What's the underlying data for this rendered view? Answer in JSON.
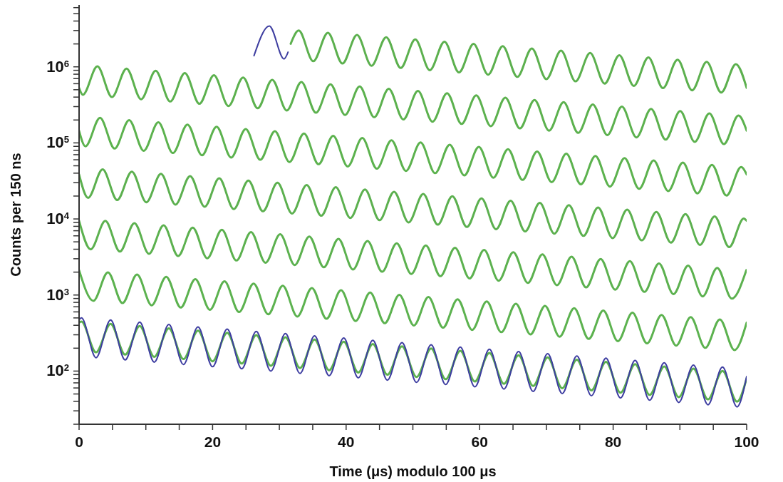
{
  "chart_data": {
    "type": "line",
    "xlabel": "Time (μs) modulo 100 μs",
    "ylabel": "Counts per 150 ns",
    "log": "y",
    "xlim": [
      0,
      100
    ],
    "ylim": [
      20,
      6500000
    ],
    "xticks": [
      0,
      {
        "value": 5,
        "label": null
      },
      {
        "value": 10,
        "label": null
      },
      {
        "value": 15,
        "label": null
      },
      20,
      {
        "value": 25,
        "label": null
      },
      {
        "value": 30,
        "label": null
      },
      {
        "value": 35,
        "label": null
      },
      40,
      {
        "value": 45,
        "label": null
      },
      {
        "value": 50,
        "label": null
      },
      {
        "value": 55,
        "label": null
      },
      60,
      {
        "value": 65,
        "label": null
      },
      {
        "value": 70,
        "label": null
      },
      {
        "value": 75,
        "label": null
      },
      80,
      {
        "value": 85,
        "label": null
      },
      {
        "value": 90,
        "label": null
      },
      {
        "value": 95,
        "label": null
      },
      100
    ],
    "yticks": [
      {
        "value": 20,
        "label": null
      },
      {
        "value": 30,
        "label": null
      },
      {
        "value": 40,
        "label": null
      },
      {
        "value": 50,
        "label": null
      },
      {
        "value": 60,
        "label": null
      },
      {
        "value": 70,
        "label": null
      },
      {
        "value": 80,
        "label": null
      },
      {
        "value": 90,
        "label": null
      },
      {
        "value": 100,
        "label": "10$^{2}$"
      },
      {
        "value": 200,
        "label": null
      },
      {
        "value": 300,
        "label": null
      },
      {
        "value": 400,
        "label": null
      },
      {
        "value": 500,
        "label": null
      },
      {
        "value": 600,
        "label": null
      },
      {
        "value": 700,
        "label": null
      },
      {
        "value": 800,
        "label": null
      },
      {
        "value": 900,
        "label": null
      },
      {
        "value": 1000,
        "label": "10$^{3}$"
      },
      {
        "value": 2000,
        "label": null
      },
      {
        "value": 3000,
        "label": null
      },
      {
        "value": 4000,
        "label": null
      },
      {
        "value": 5000,
        "label": null
      },
      {
        "value": 6000,
        "label": null
      },
      {
        "value": 7000,
        "label": null
      },
      {
        "value": 8000,
        "label": null
      },
      {
        "value": 9000,
        "label": null
      },
      {
        "value": 10000,
        "label": "10$^{4}$"
      },
      {
        "value": 20000,
        "label": null
      },
      {
        "value": 30000,
        "label": null
      },
      {
        "value": 40000,
        "label": null
      },
      {
        "value": 50000,
        "label": null
      },
      {
        "value": 60000,
        "label": null
      },
      {
        "value": 70000,
        "label": null
      },
      {
        "value": 80000,
        "label": null
      },
      {
        "value": 90000,
        "label": null
      },
      {
        "value": 100000,
        "label": "10$^{5}$"
      },
      {
        "value": 200000,
        "label": null
      },
      {
        "value": 300000,
        "label": null
      },
      {
        "value": 400000,
        "label": null
      },
      {
        "value": 500000,
        "label": null
      },
      {
        "value": 600000,
        "label": null
      },
      {
        "value": 700000,
        "label": null
      },
      {
        "value": 800000,
        "label": null
      },
      {
        "value": 900000,
        "label": null
      },
      {
        "value": 1000000,
        "label": "10$^{6}$"
      },
      {
        "value": 2000000,
        "label": null
      },
      {
        "value": 3000000,
        "label": null
      },
      {
        "value": 4000000,
        "label": null
      },
      {
        "value": 5000000,
        "label": null
      },
      {
        "value": 6000000,
        "label": null
      }
    ],
    "series": [
      {
        "color": "#3e3ea0",
        "x": [
          26.2,
          28.5,
          30.7,
          31.3
        ],
        "values": [
          1400000,
          3440000,
          1270000,
          1560000
        ]
      },
      {
        "color": "#5cb04e",
        "x": [
          31.7,
          32.9,
          35.08,
          37.27,
          39.45,
          41.63,
          43.81,
          46.0,
          48.18,
          50.36,
          52.54,
          54.73,
          56.91,
          59.09,
          61.27,
          63.46,
          65.64,
          67.82,
          70.0,
          72.19,
          74.37,
          76.55,
          78.73,
          80.92,
          83.1,
          85.28,
          87.46,
          89.65,
          91.83,
          94.01,
          96.19,
          98.38,
          100
        ],
        "values": [
          2010000,
          3000000,
          1185000,
          2800000,
          1107000,
          2620000,
          1035000,
          2450000,
          967000,
          2290000,
          903000,
          2140000,
          844000,
          2000000,
          789000,
          1870000,
          737000,
          1745000,
          689000,
          1630000,
          644000,
          1520000,
          602000,
          1420000,
          562000,
          1330000,
          525000,
          1240000,
          491000,
          1160000,
          459000,
          1086000,
          528000
        ]
      },
      {
        "color": "#5cb14e",
        "x": [
          0,
          0.56,
          2.74,
          4.92,
          7.11,
          9.29,
          11.47,
          13.65,
          15.84,
          18.02,
          20.2,
          22.38,
          24.57,
          26.75,
          28.93,
          31.11,
          33.3,
          35.48,
          37.66,
          39.84,
          42.03,
          44.21,
          46.39,
          48.57,
          50.76,
          52.94,
          55.12,
          57.3,
          59.49,
          61.67,
          63.85,
          66.03,
          68.22,
          70.4,
          72.58,
          74.76,
          76.95,
          79.13,
          81.31,
          83.49,
          85.68,
          87.86,
          90.04,
          92.22,
          94.41,
          96.59,
          98.77,
          100
        ],
        "values": [
          528000,
          428700,
          1015000,
          400700,
          948400,
          374400,
          886200,
          349900,
          828100,
          326900,
          773700,
          305400,
          723000,
          285400,
          675800,
          266800,
          631500,
          249300,
          590000,
          232900,
          551400,
          217700,
          515200,
          203400,
          481500,
          190100,
          449900,
          177600,
          420400,
          166000,
          392900,
          155100,
          367100,
          144900,
          343100,
          135400,
          320600,
          126600,
          299500,
          118200,
          279900,
          110500,
          261600,
          103300,
          244500,
          96500,
          228500,
          144600
        ]
      },
      {
        "color": "#5cb24e",
        "x": [
          0,
          0.95,
          3.14,
          5.32,
          7.5,
          9.68,
          11.87,
          14.05,
          16.23,
          18.41,
          20.6,
          22.78,
          24.96,
          27.14,
          29.33,
          31.51,
          33.69,
          35.87,
          38.06,
          40.24,
          42.42,
          44.6,
          46.79,
          48.97,
          51.15,
          53.33,
          55.52,
          57.7,
          59.88,
          62.06,
          64.25,
          66.43,
          68.61,
          70.79,
          72.98,
          75.16,
          77.34,
          79.52,
          81.71,
          83.89,
          86.07,
          88.25,
          90.44,
          92.62,
          94.8,
          96.98,
          99.17,
          100
        ],
        "values": [
          144600,
          90210,
          213500,
          84290,
          199500,
          78760,
          186400,
          73590,
          174200,
          68770,
          162800,
          64270,
          152000,
          60010,
          142100,
          56100,
          132800,
          52430,
          124100,
          48990,
          116000,
          45790,
          108400,
          42790,
          101300,
          39990,
          94630,
          37360,
          88430,
          34910,
          82650,
          32630,
          77160,
          30460,
          72140,
          28480,
          67420,
          26620,
          63000,
          24870,
          58890,
          23250,
          55030,
          21720,
          51430,
          20300,
          48040,
          38500
        ]
      },
      {
        "color": "#5cb04f",
        "x": [
          0,
          1.35,
          3.53,
          5.71,
          7.9,
          10.08,
          12.26,
          14.44,
          16.63,
          18.81,
          20.99,
          23.17,
          25.36,
          27.54,
          29.72,
          31.9,
          34.09,
          36.27,
          38.45,
          40.63,
          42.82,
          45.0,
          47.18,
          49.36,
          51.55,
          53.73,
          55.91,
          58.09,
          60.28,
          62.46,
          64.64,
          66.82,
          69.01,
          71.19,
          73.37,
          75.55,
          77.74,
          79.92,
          82.1,
          84.28,
          86.47,
          88.65,
          90.83,
          93.01,
          95.2,
          97.38,
          99.56,
          100
        ],
        "values": [
          38500,
          18970,
          44890,
          17720,
          41960,
          16570,
          39170,
          15460,
          36620,
          14460,
          34230,
          13510,
          31980,
          12620,
          29900,
          11800,
          27940,
          11030,
          26110,
          10310,
          24390,
          9629,
          22790,
          8997,
          21300,
          8409,
          19890,
          7852,
          18590,
          7339,
          17380,
          6861,
          16240,
          6411,
          15180,
          5993,
          14180,
          5598,
          13260,
          5235,
          12380,
          4887,
          11570,
          4568,
          10810,
          4268,
          10100,
          9470
        ]
      },
      {
        "color": "#5cb14f",
        "x": [
          0,
          1.74,
          3.93,
          6.11,
          8.29,
          10.47,
          12.66,
          14.84,
          17.02,
          19.2,
          21.39,
          23.57,
          25.75,
          27.93,
          30.12,
          32.3,
          34.48,
          36.66,
          38.85,
          41.03,
          43.21,
          45.39,
          47.58,
          49.76,
          51.94,
          54.12,
          56.31,
          58.49,
          60.67,
          62.85,
          65.04,
          67.22,
          69.4,
          71.58,
          73.77,
          75.95,
          78.13,
          80.31,
          82.5,
          84.68,
          86.86,
          89.04,
          91.23,
          93.41,
          95.59,
          97.77,
          99.96
        ],
        "values": [
          9470,
          3987,
          9437,
          3726,
          8823,
          3483,
          8244,
          3255,
          7706,
          3042,
          7199,
          2842,
          6732,
          2658,
          6285,
          2481,
          5874,
          2319,
          5488,
          2167,
          5127,
          2024,
          4791,
          1891,
          4479,
          1768,
          4185,
          1652,
          3912,
          1544,
          3655,
          1443,
          3418,
          1349,
          3191,
          1260,
          2982,
          1177,
          2786,
          1100,
          2603,
          1028,
          2432,
          960.1,
          2274,
          897.7,
          2125
        ]
      },
      {
        "color": "#5cb24f",
        "x": [
          0,
          2.14,
          4.32,
          6.5,
          8.68,
          10.87,
          13.05,
          15.23,
          17.41,
          19.6,
          21.78,
          23.96,
          26.14,
          28.33,
          30.51,
          32.69,
          34.87,
          37.06,
          39.24,
          41.42,
          43.6,
          45.79,
          47.97,
          50.15,
          52.33,
          54.52,
          56.7,
          58.88,
          61.06,
          63.25,
          65.43,
          67.61,
          69.79,
          71.98,
          74.16,
          76.34,
          78.52,
          80.71,
          82.89,
          85.07,
          87.25,
          89.44,
          91.62,
          93.8,
          95.98,
          98.17,
          100
        ],
        "values": [
          2120,
          838.9,
          1986,
          784.0,
          1856,
          732.7,
          1735,
          684.9,
          1620,
          639.5,
          1514,
          597.7,
          1414,
          558.2,
          1321,
          521.5,
          1235,
          487.6,
          1154,
          455.6,
          1079,
          426.0,
          1008,
          397.9,
          942.2,
          372.0,
          880.8,
          347.7,
          822.4,
          324.7,
          768.6,
          303.4,
          717.8,
          283.4,
          670.6,
          264.7,
          627.0,
          247.5,
          585.8,
          231.3,
          547.8,
          216.3,
          511.7,
          202.0,
          478.3,
          188.8,
          433
        ]
      },
      {
        "color": "#5cb050",
        "x": [
          0,
          0.35,
          2.53,
          4.72,
          6.9,
          9.08,
          11.26,
          13.45,
          15.63,
          17.81,
          19.99,
          22.18,
          24.36,
          26.54,
          28.72,
          30.91,
          33.09,
          35.27,
          37.45,
          39.64,
          41.82,
          44.0,
          46.18,
          48.37,
          50.55,
          52.73,
          54.91,
          57.1,
          59.28,
          61.46,
          63.64,
          65.83,
          68.01,
          70.19,
          72.37,
          74.56,
          76.74,
          78.92,
          81.1,
          83.29,
          85.47,
          87.65,
          89.83,
          92.02,
          94.2,
          96.38,
          98.56,
          100
        ],
        "values": [
          433,
          447.2,
          176.5,
          417.5,
          164.8,
          390.2,
          154.0,
          364.4,
          143.9,
          340.4,
          134.4,
          318.3,
          125.7,
          297.4,
          117.4,
          278.1,
          109.8,
          259.8,
          102.6,
          242.8,
          95.85,
          227.0,
          89.61,
          211.9,
          83.65,
          198.1,
          78.21,
          185.0,
          73.03,
          172.8,
          68.22,
          161.6,
          63.8,
          151.0,
          59.61,
          141.2,
          55.74,
          131.9,
          52.07,
          123.3,
          48.68,
          115.2,
          45.48,
          107.6,
          42.48,
          100.6,
          39.71,
          80.7
        ]
      },
      {
        "color": "#3e3ea1",
        "x": [
          0,
          0.35,
          2.53,
          4.72,
          6.9,
          9.08,
          11.26,
          13.45,
          15.63,
          17.81,
          19.99,
          22.18,
          24.36,
          26.54,
          28.72,
          30.91,
          33.09,
          35.27,
          37.45,
          39.64,
          41.82,
          44.0,
          46.18,
          48.37,
          50.55,
          52.73,
          54.91,
          57.1,
          59.28,
          61.46,
          63.64,
          65.83,
          68.01,
          70.19,
          72.37,
          74.56,
          76.74,
          78.92,
          81.1,
          83.29,
          85.47,
          87.65,
          89.83,
          92.02,
          94.2,
          96.38,
          98.56,
          100
        ],
        "values": [
          470,
          500,
          150,
          470,
          140,
          440,
          131,
          410,
          122,
          380,
          114,
          356,
          107,
          333,
          100,
          311,
          93,
          291,
          87,
          272,
          81.5,
          254,
          76,
          237,
          71,
          222,
          66.5,
          207,
          62,
          194,
          58,
          181,
          54,
          169,
          50.7,
          158,
          47.4,
          148,
          44.3,
          138,
          41.4,
          129,
          38.7,
          120,
          36.1,
          113,
          33.8,
          85
        ]
      }
    ]
  }
}
